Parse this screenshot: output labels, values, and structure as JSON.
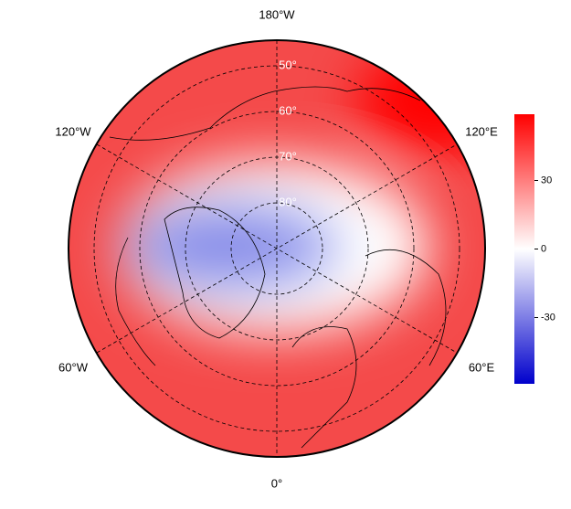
{
  "map": {
    "longitude_labels": [
      "180°W",
      "120°E",
      "60°E",
      "0°",
      "60°W",
      "120°W"
    ],
    "latitude_labels": [
      "50°",
      "60°",
      "70°",
      "80°"
    ],
    "colorbar": {
      "lim": [
        -59,
        59
      ],
      "ticks": [
        30,
        0,
        -30
      ],
      "colors": [
        "#0000cc",
        "#ffffff",
        "#ff0000"
      ]
    }
  }
}
